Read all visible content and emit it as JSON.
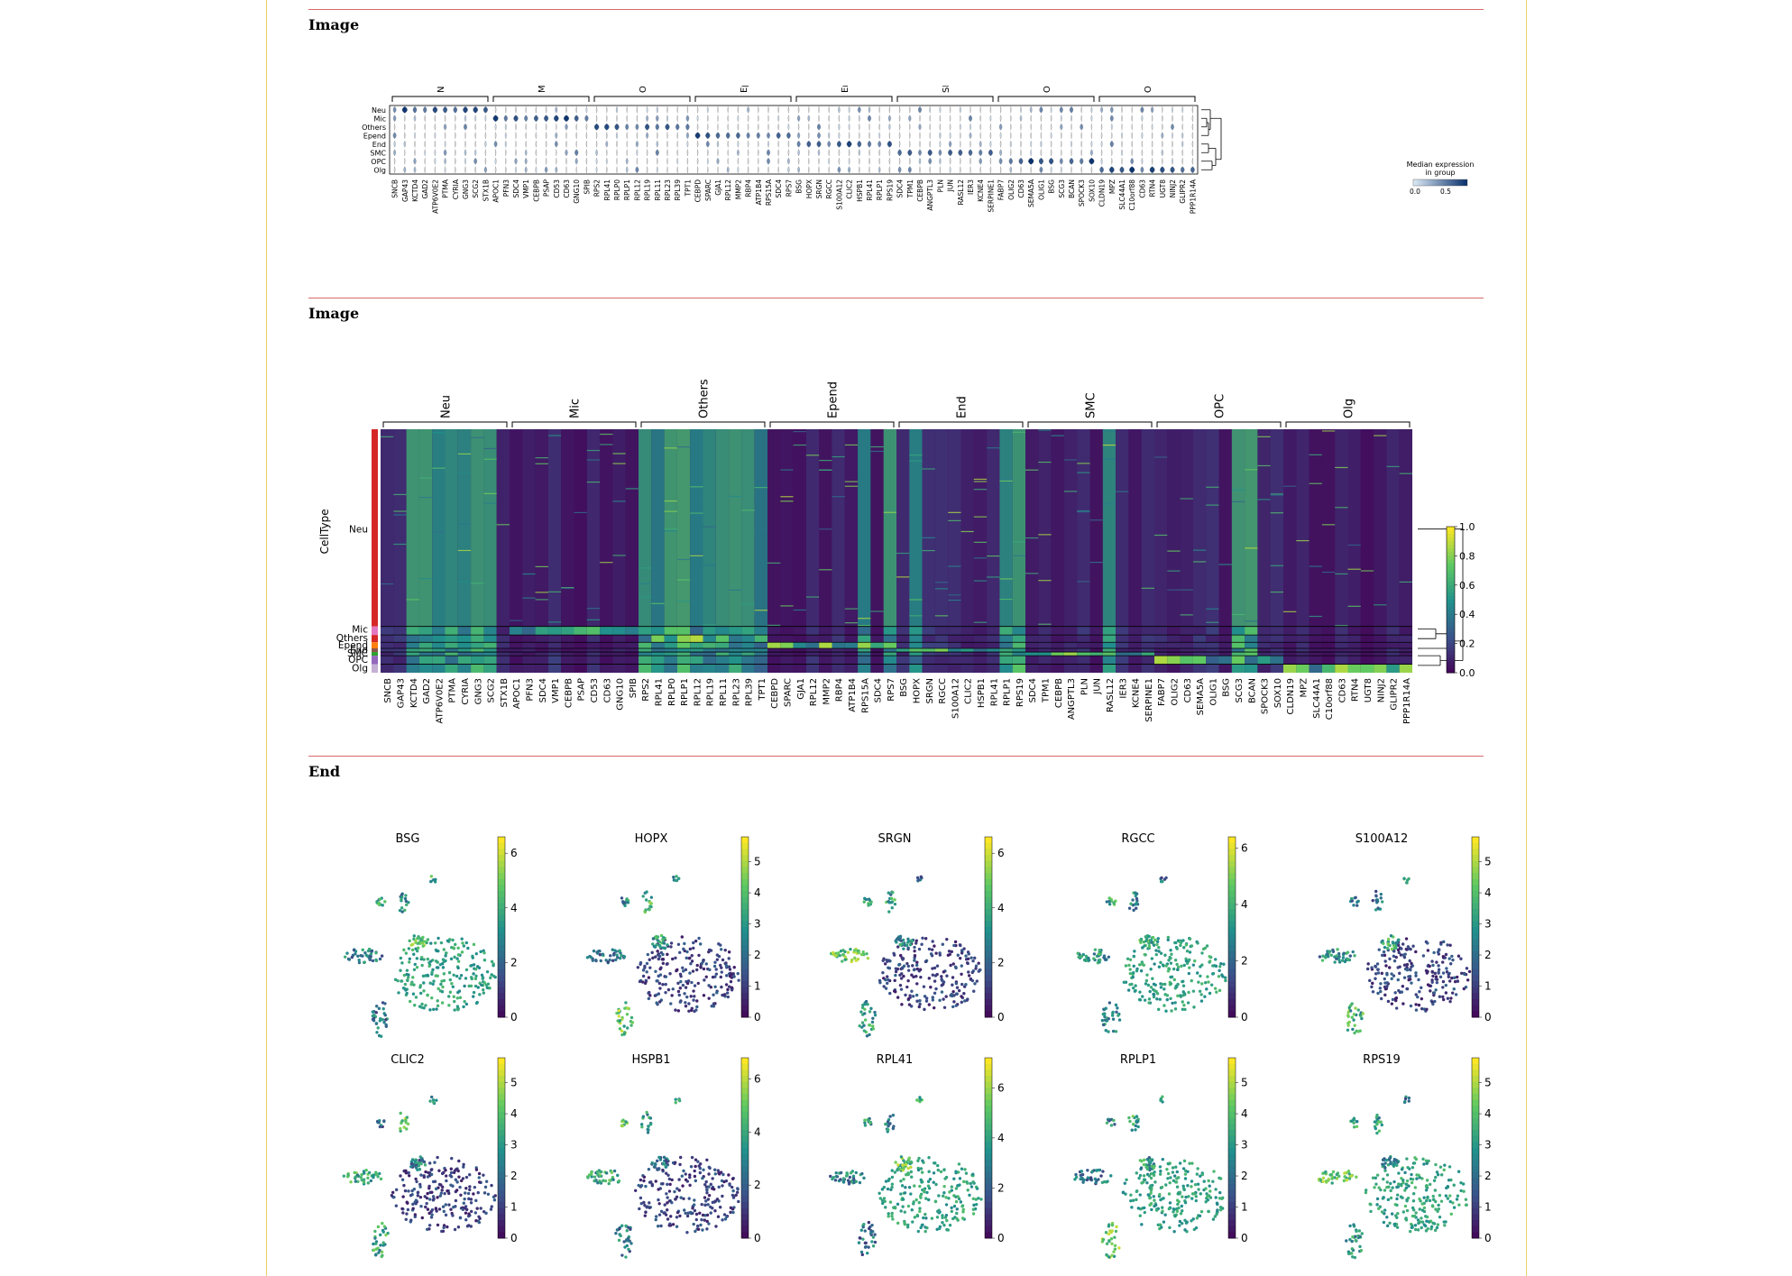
{
  "sections": [
    {
      "title": "Image"
    },
    {
      "title": "Image"
    },
    {
      "title": "End"
    }
  ],
  "colors": {
    "rule": "#d66a6a",
    "page_border": "#e8d26a",
    "violin": "#2f6fb0",
    "heat_low": "#440154",
    "heat_high": "#fde725"
  },
  "groups": [
    "Neu",
    "Mic",
    "Others",
    "Epend",
    "End",
    "SMC",
    "OPC",
    "Olg"
  ],
  "genes": [
    "SNCB",
    "GAP43",
    "KCTD4",
    "GAD2",
    "ATP6V0E2",
    "PTMA",
    "CYRIA",
    "GNG3",
    "SCG2",
    "STX1B",
    "APOC1",
    "PFN3",
    "SDC4",
    "VMP1",
    "CEBPB",
    "PSAP",
    "CD53",
    "CD63",
    "GNG10",
    "SPIB",
    "RPS2",
    "RPL41",
    "RPLP0",
    "RPLP1",
    "RPL12",
    "RPL19",
    "RPL11",
    "RPL23",
    "RPL39",
    "TPT1",
    "CEBPD",
    "SPARC",
    "GJA1",
    "RPL12",
    "MMP2",
    "RBP4",
    "ATP1B4",
    "RPS15A",
    "SDC4",
    "RPS7",
    "BSG",
    "HOPX",
    "SRGN",
    "RGCC",
    "S100A12",
    "CLIC2",
    "HSPB1",
    "RPL41",
    "RPLP1",
    "RPS19",
    "SDC4",
    "TPM1",
    "CEBPB",
    "ANGPTL3",
    "PLN",
    "JUN",
    "RASL12",
    "IER3",
    "KCNE4",
    "SERPINE1",
    "FABP7",
    "OLIG2",
    "CD63",
    "SEMA5A",
    "OLIG1",
    "BSG",
    "SCG3",
    "BCAN",
    "SPOCK3",
    "SOX10",
    "CLDN19",
    "MPZ",
    "SLC44A1",
    "C10orf88",
    "CD63",
    "RTN4",
    "UGT8",
    "NINJ2",
    "GLIPR2",
    "PPP1R14A"
  ],
  "violin_chart": {
    "cell_types": [
      "Neu",
      "Mic",
      "Others",
      "Epend",
      "End",
      "SMC",
      "OPC",
      "Olg"
    ],
    "legend_title": "Median expression\nin group",
    "legend_ticks": [
      "0.0",
      "0.5"
    ]
  },
  "heatmap_chart": {
    "ylabel": "CellType",
    "row_labels": [
      "Neu",
      "Mic",
      "Others",
      "Epend",
      "End",
      "SMC",
      "OPC",
      "Olg"
    ],
    "colorbar_ticks": [
      "1.0",
      "0.8",
      "0.6",
      "0.4",
      "0.2",
      "0.0"
    ]
  },
  "umap_panels": [
    {
      "gene": "BSG",
      "ticks": [
        "6",
        "4",
        "2",
        "0"
      ],
      "max": 6.6
    },
    {
      "gene": "HOPX",
      "ticks": [
        "5",
        "4",
        "3",
        "2",
        "1",
        "0"
      ],
      "max": 5.8
    },
    {
      "gene": "SRGN",
      "ticks": [
        "6",
        "4",
        "2",
        "0"
      ],
      "max": 6.6
    },
    {
      "gene": "RGCC",
      "ticks": [
        "6",
        "4",
        "2",
        "0"
      ],
      "max": 6.4
    },
    {
      "gene": "S100A12",
      "ticks": [
        "5",
        "4",
        "3",
        "2",
        "1",
        "0"
      ],
      "max": 5.8
    },
    {
      "gene": "CLIC2",
      "ticks": [
        "5",
        "4",
        "3",
        "2",
        "1",
        "0"
      ],
      "max": 5.8
    },
    {
      "gene": "HSPB1",
      "ticks": [
        "6",
        "4",
        "2",
        "0"
      ],
      "max": 6.8
    },
    {
      "gene": "RPL41",
      "ticks": [
        "6",
        "4",
        "2",
        "0"
      ],
      "max": 7.2
    },
    {
      "gene": "RPLP1",
      "ticks": [
        "5",
        "4",
        "3",
        "2",
        "1",
        "0"
      ],
      "max": 5.8
    },
    {
      "gene": "RPS19",
      "ticks": [
        "5",
        "4",
        "3",
        "2",
        "1",
        "0"
      ],
      "max": 5.8
    }
  ]
}
